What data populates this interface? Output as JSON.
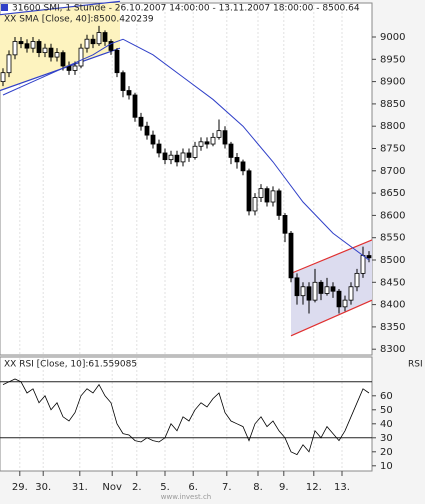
{
  "chart_data": [
    {
      "type": "candlestick",
      "title": "31600  SMI, 1 Stunde - 26.10.2007 14:00:00 - 13.11.2007 18:00:00 - 8500.64",
      "open": [
        8900,
        8920,
        8960,
        8990,
        8985,
        8975,
        8990,
        8965,
        8975,
        8955,
        8965,
        8935,
        8925,
        8935,
        8975,
        8995,
        8985,
        9010,
        8990,
        8970,
        8920,
        8880,
        8870,
        8820,
        8800,
        8780,
        8760,
        8740,
        8725,
        8735,
        8720,
        8740,
        8730,
        8755,
        8765,
        8760,
        8775,
        8790,
        8760,
        8730,
        8720,
        8700,
        8610,
        8640,
        8660,
        8630,
        8655,
        8600,
        8560,
        8460,
        8420,
        8440,
        8410,
        8450,
        8425,
        8440,
        8430,
        8395,
        8410,
        8440,
        8470,
        8510
      ],
      "high": [
        8930,
        8970,
        9000,
        9000,
        8995,
        9000,
        8995,
        8985,
        8985,
        8975,
        8970,
        8945,
        8945,
        8985,
        9005,
        9005,
        9025,
        9015,
        8995,
        8975,
        8925,
        8890,
        8875,
        8830,
        8810,
        8790,
        8770,
        8750,
        8745,
        8745,
        8750,
        8750,
        8765,
        8775,
        8775,
        8785,
        8815,
        8800,
        8765,
        8740,
        8725,
        8705,
        8650,
        8670,
        8665,
        8665,
        8660,
        8605,
        8565,
        8470,
        8450,
        8450,
        8480,
        8455,
        8460,
        8450,
        8435,
        8420,
        8450,
        8480,
        8530,
        8520
      ],
      "low": [
        8890,
        8910,
        8950,
        8975,
        8965,
        8965,
        8955,
        8955,
        8945,
        8945,
        8925,
        8915,
        8915,
        8930,
        8965,
        8975,
        8980,
        8980,
        8960,
        8910,
        8865,
        8860,
        8810,
        8790,
        8770,
        8750,
        8730,
        8715,
        8715,
        8710,
        8710,
        8720,
        8725,
        8745,
        8750,
        8755,
        8770,
        8750,
        8715,
        8705,
        8690,
        8600,
        8600,
        8630,
        8620,
        8620,
        8590,
        8540,
        8450,
        8400,
        8400,
        8380,
        8405,
        8410,
        8420,
        8415,
        8380,
        8385,
        8400,
        8430,
        8460,
        8495
      ],
      "close": [
        8920,
        8960,
        8990,
        8985,
        8975,
        8990,
        8965,
        8975,
        8955,
        8965,
        8935,
        8925,
        8935,
        8975,
        8995,
        8985,
        9010,
        8990,
        8970,
        8920,
        8880,
        8870,
        8820,
        8800,
        8780,
        8760,
        8740,
        8725,
        8735,
        8720,
        8740,
        8730,
        8755,
        8765,
        8760,
        8775,
        8790,
        8760,
        8730,
        8720,
        8700,
        8610,
        8640,
        8660,
        8630,
        8655,
        8600,
        8560,
        8460,
        8420,
        8440,
        8410,
        8450,
        8425,
        8440,
        8430,
        8395,
        8410,
        8440,
        8470,
        8510,
        8505
      ],
      "up_color": "#ffffff",
      "down_color": "#000000",
      "xlim": [
        -0.5,
        61.5
      ],
      "xticks": [
        {
          "value": 2.8,
          "label": "29."
        },
        {
          "value": 6.7,
          "label": "30."
        },
        {
          "value": 12.8,
          "label": "31."
        },
        {
          "value": 18.2,
          "label": "Nov"
        },
        {
          "value": 22.3,
          "label": "2."
        },
        {
          "value": 27,
          "label": "5."
        },
        {
          "value": 31.7,
          "label": "6."
        },
        {
          "value": 37.3,
          "label": "7."
        },
        {
          "value": 42.5,
          "label": "8."
        },
        {
          "value": 46.8,
          "label": "9."
        },
        {
          "value": 51.8,
          "label": "12."
        },
        {
          "value": 56.5,
          "label": "13."
        }
      ],
      "ylim": [
        8287,
        9074
      ],
      "yticks": [
        8300,
        8350,
        8400,
        8450,
        8500,
        8550,
        8600,
        8650,
        8700,
        8750,
        8800,
        8850,
        8900,
        8950,
        9000
      ],
      "grid": true,
      "series": [
        {
          "name": "XX SMA [Close, 40]:8500.420239",
          "color": "#3040c8",
          "x": [
            0,
            5,
            10,
            15,
            18,
            20,
            25,
            30,
            35,
            40,
            45,
            50,
            55,
            61
          ],
          "values": [
            8870,
            8900,
            8930,
            8960,
            8985,
            8995,
            8960,
            8910,
            8860,
            8800,
            8720,
            8630,
            8560,
            8500
          ]
        }
      ],
      "channels": [
        {
          "fill": "#fdf3bf",
          "line_color": "#3040c8",
          "x": [
            -0.5,
            19.5
          ],
          "upper": [
            9050,
            9080
          ],
          "lower": [
            8880,
            8975
          ]
        },
        {
          "fill": "#dcdcef",
          "line_color": "#e03030",
          "x": [
            48,
            61.5
          ],
          "upper": [
            8470,
            8545
          ],
          "lower": [
            8330,
            8410
          ]
        }
      ],
      "watermark": "www.invest.ch"
    },
    {
      "type": "line",
      "y_label": "RSI",
      "ylim": [
        7,
        87
      ],
      "yticks": [
        10,
        20,
        30,
        40,
        50,
        60
      ],
      "hlines": [
        30,
        70
      ],
      "series": [
        {
          "name": "XX RSI [Close, 10]:61.559085",
          "color": "#000000",
          "values": [
            68,
            70,
            72,
            70,
            62,
            65,
            55,
            60,
            50,
            55,
            45,
            42,
            48,
            60,
            65,
            62,
            68,
            60,
            55,
            40,
            33,
            32,
            28,
            27,
            30,
            28,
            27,
            30,
            40,
            35,
            45,
            42,
            50,
            55,
            52,
            58,
            62,
            48,
            42,
            40,
            38,
            28,
            40,
            45,
            38,
            42,
            35,
            30,
            20,
            18,
            25,
            20,
            35,
            30,
            38,
            33,
            28,
            35,
            45,
            55,
            65,
            62
          ]
        }
      ]
    }
  ]
}
